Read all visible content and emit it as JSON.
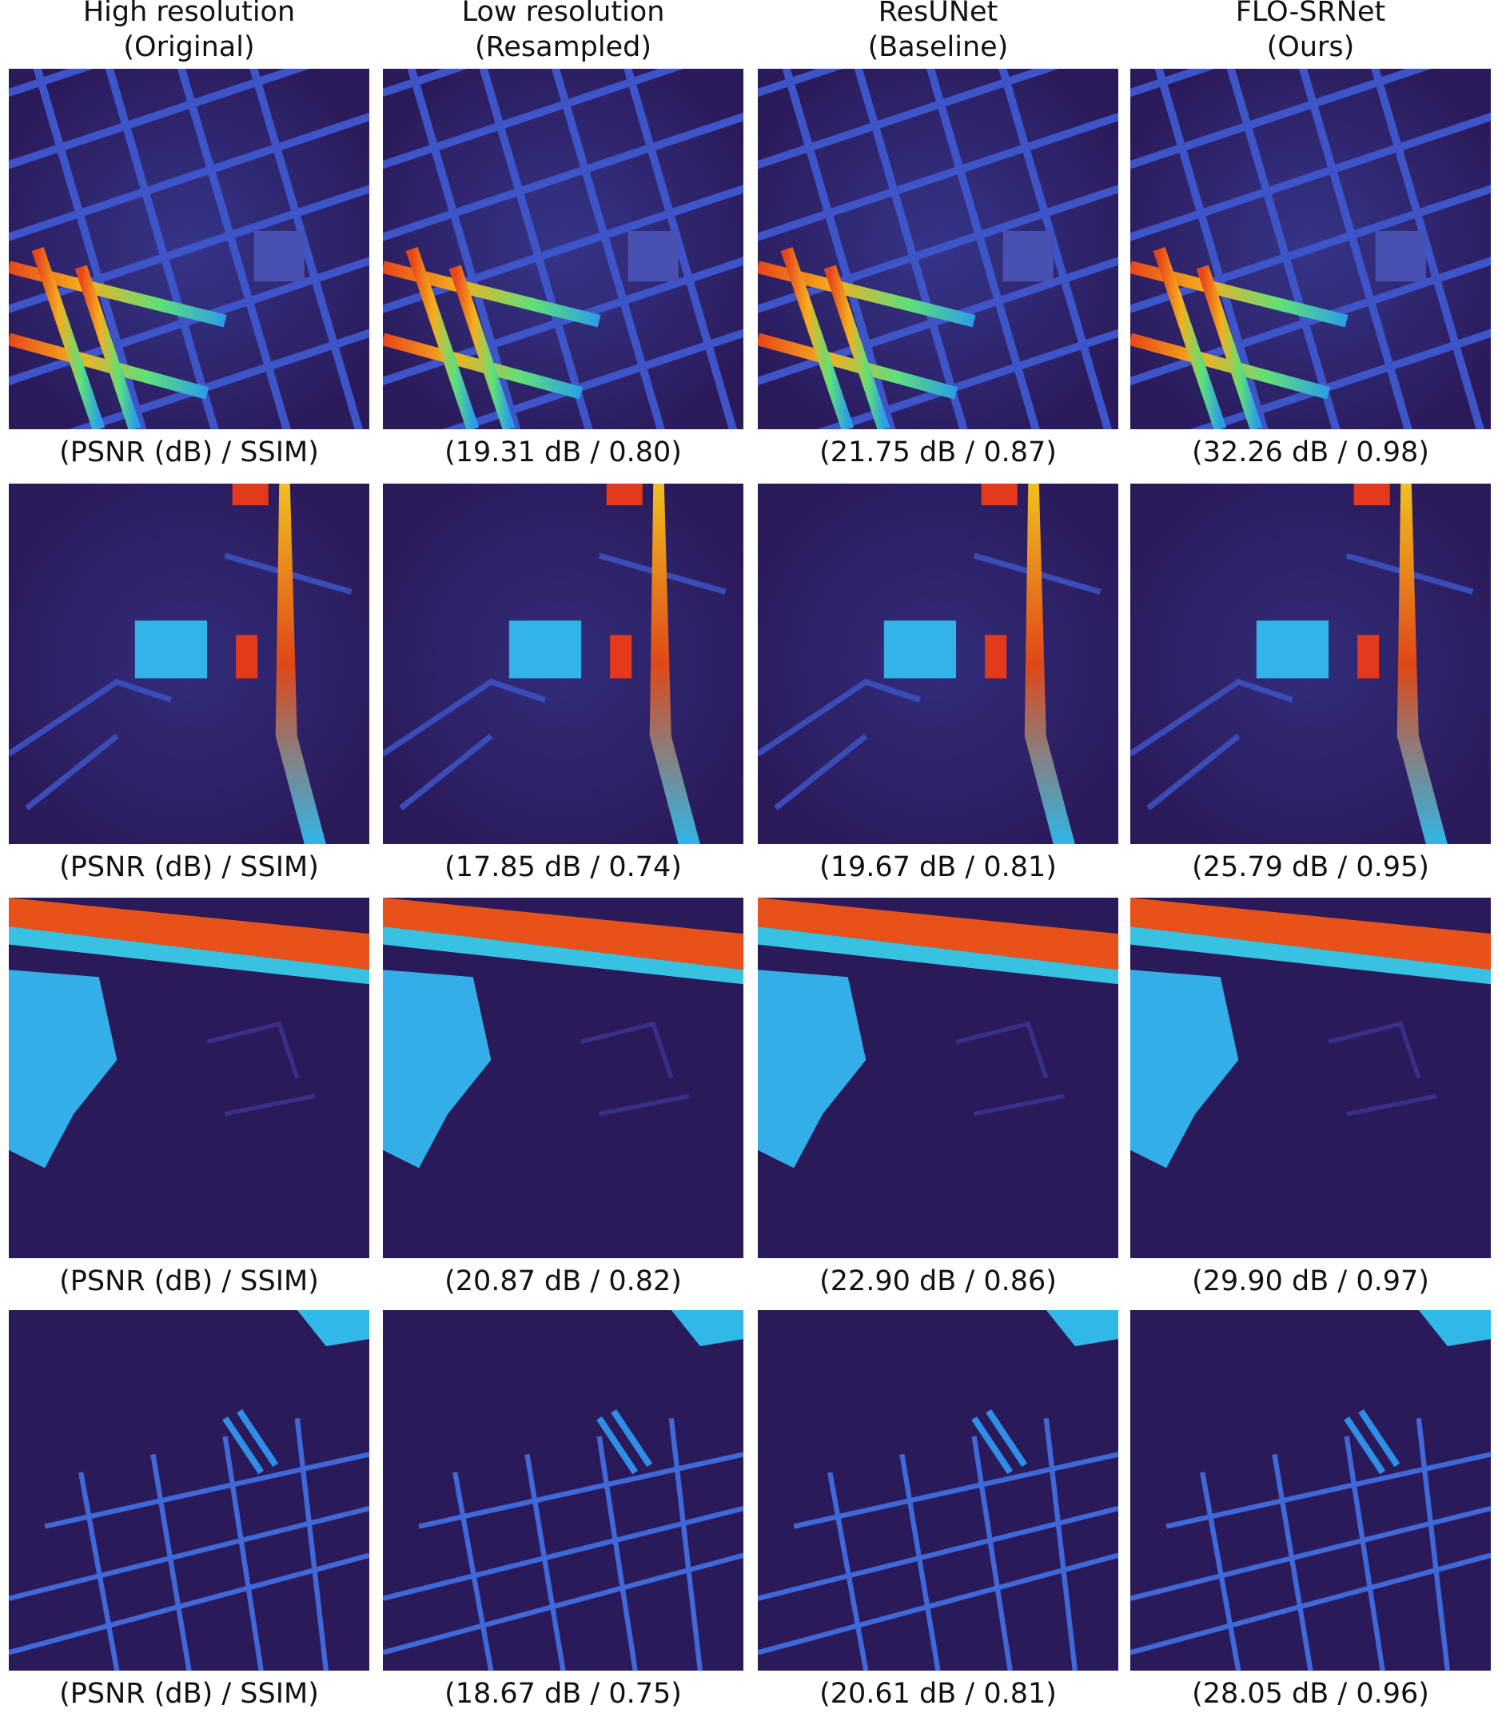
{
  "columns": [
    {
      "title": "High resolution",
      "subtitle": "(Original)"
    },
    {
      "title": "Low resolution",
      "subtitle": "(Resampled)"
    },
    {
      "title": "ResUNet",
      "subtitle": "(Baseline)"
    },
    {
      "title": "FLO-SRNet",
      "subtitle": "(Ours)"
    }
  ],
  "rows": [
    {
      "captions": [
        "(PSNR (dB) / SSIM)",
        "(19.31 dB / 0.80)",
        "(21.75 dB / 0.87)",
        "(32.26 dB / 0.98)"
      ]
    },
    {
      "captions": [
        "(PSNR (dB) / SSIM)",
        "(17.85 dB / 0.74)",
        "(19.67 dB / 0.81)",
        "(25.79 dB / 0.95)"
      ]
    },
    {
      "captions": [
        "(PSNR (dB) / SSIM)",
        "(20.87 dB / 0.82)",
        "(22.90 dB / 0.86)",
        "(29.90 dB / 0.97)"
      ]
    },
    {
      "captions": [
        "(PSNR (dB) / SSIM)",
        "(18.67 dB / 0.75)",
        "(20.61 dB / 0.81)",
        "(28.05 dB / 0.96)"
      ]
    }
  ]
}
